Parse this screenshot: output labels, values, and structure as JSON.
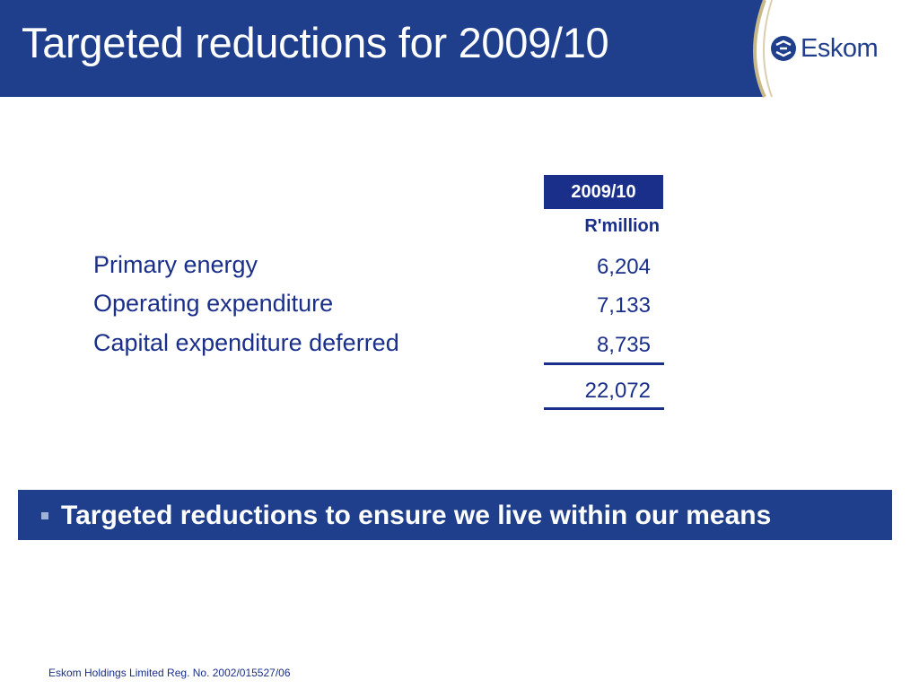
{
  "slide": {
    "title": "Targeted reductions for 2009/10"
  },
  "logo": {
    "icon": "eskom-logo-icon",
    "text": "Eskom"
  },
  "table": {
    "column_header": "2009/10",
    "unit": "R'million",
    "rows": [
      {
        "label": "Primary energy",
        "value": "6,204"
      },
      {
        "label": "Operating expenditure",
        "value": "7,133"
      },
      {
        "label": "Capital expenditure deferred",
        "value": "8,735"
      }
    ],
    "total": "22,072"
  },
  "banner": {
    "text": "Targeted reductions to ensure we live within our means"
  },
  "footer": {
    "text": "Eskom Holdings Limited Reg. No. 2002/015527/06"
  },
  "colors": {
    "header_bg": "#1f3f8c",
    "text_navy": "#1a2f8a",
    "swoosh_gold": "#c8b98a"
  }
}
